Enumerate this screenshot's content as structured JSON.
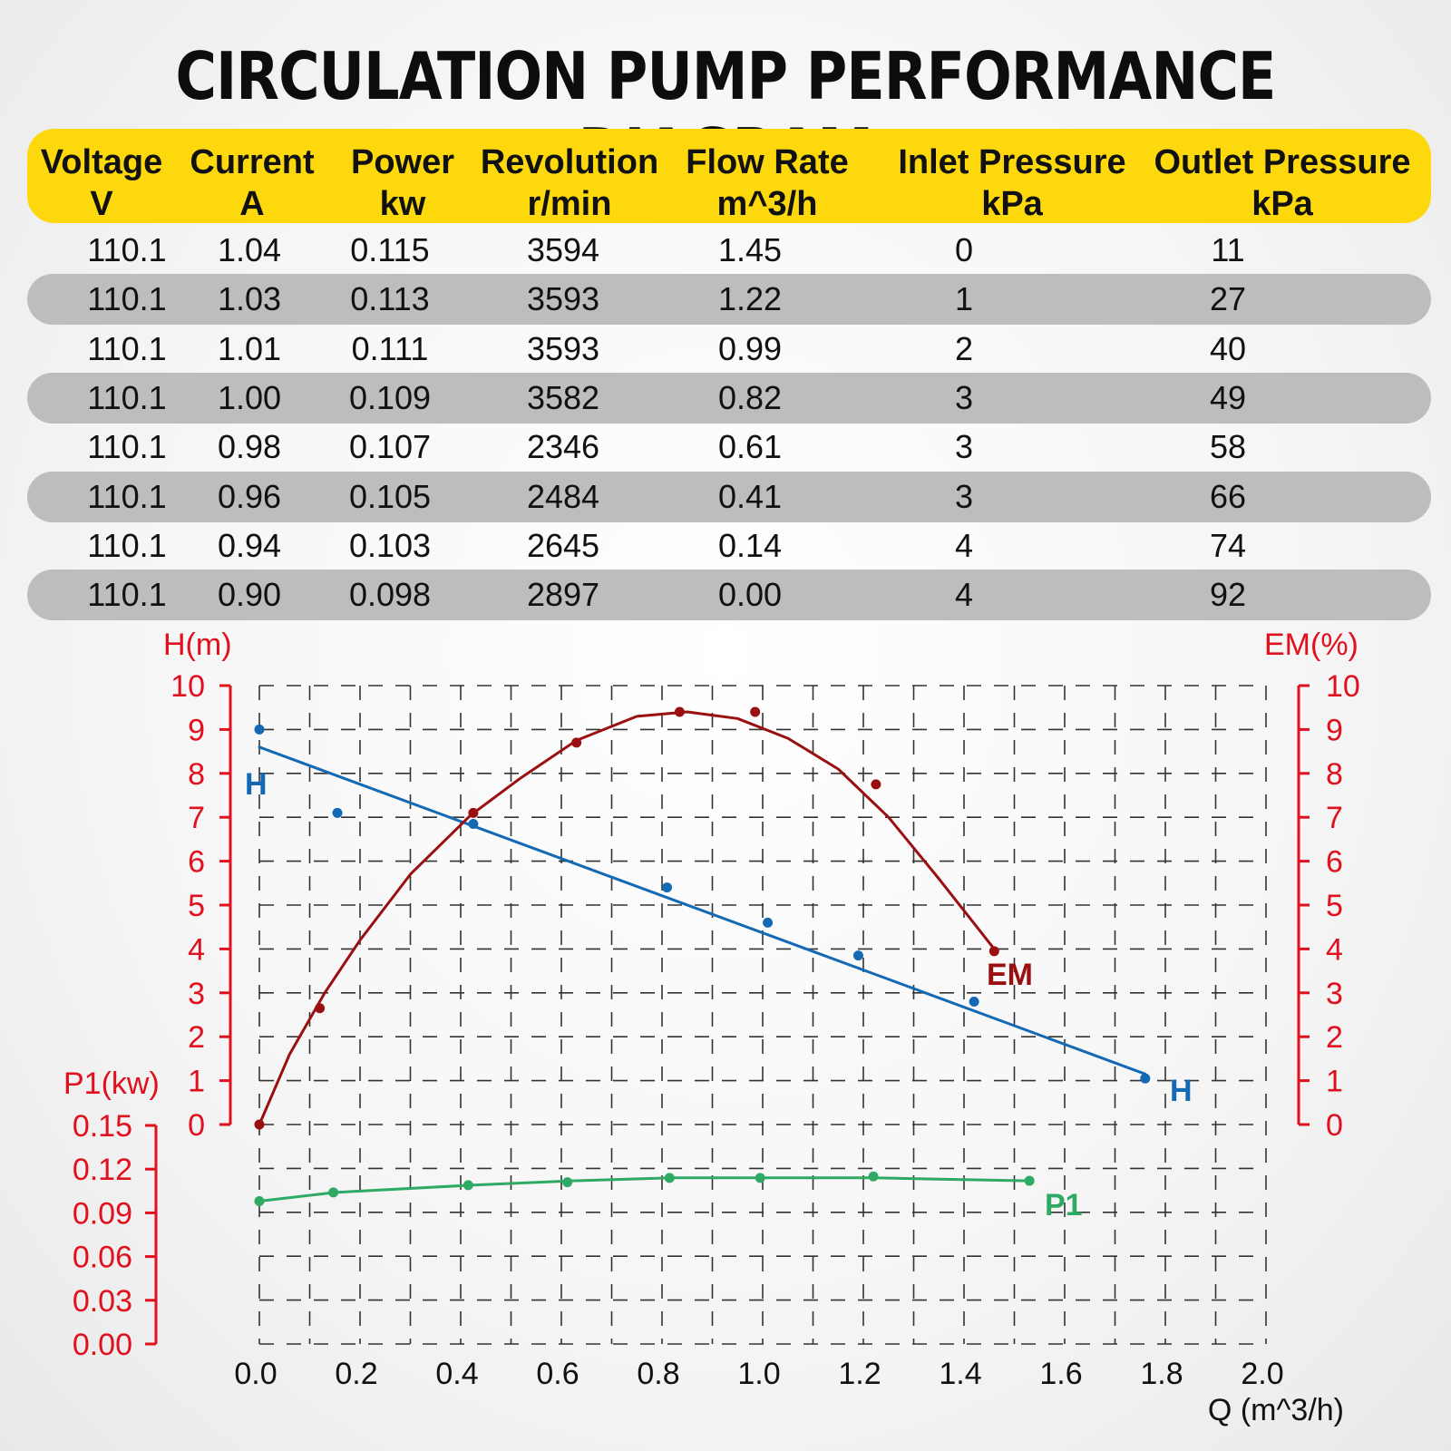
{
  "title": "CIRCULATION PUMP PERFORMANCE DIAGRAM",
  "table": {
    "columns": [
      {
        "name": "Voltage",
        "unit": "V"
      },
      {
        "name": "Current",
        "unit": "A"
      },
      {
        "name": "Power",
        "unit": "kw"
      },
      {
        "name": "Revolution",
        "unit": "r/min"
      },
      {
        "name": "Flow Rate",
        "unit": "m^3/h"
      },
      {
        "name": "Inlet Pressure",
        "unit": "kPa"
      },
      {
        "name": "Outlet Pressure",
        "unit": "kPa"
      }
    ],
    "rows": [
      [
        "110.1",
        "1.04",
        "0.115",
        "3594",
        "1.45",
        "0",
        "11"
      ],
      [
        "110.1",
        "1.03",
        "0.113",
        "3593",
        "1.22",
        "1",
        "27"
      ],
      [
        "110.1",
        "1.01",
        "0.111",
        "3593",
        "0.99",
        "2",
        "40"
      ],
      [
        "110.1",
        "1.00",
        "0.109",
        "3582",
        "0.82",
        "3",
        "49"
      ],
      [
        "110.1",
        "0.98",
        "0.107",
        "2346",
        "0.61",
        "3",
        "58"
      ],
      [
        "110.1",
        "0.96",
        "0.105",
        "2484",
        "0.41",
        "3",
        "66"
      ],
      [
        "110.1",
        "0.94",
        "0.103",
        "2645",
        "0.14",
        "4",
        "74"
      ],
      [
        "110.1",
        "0.90",
        "0.098",
        "2897",
        "0.00",
        "4",
        "92"
      ]
    ],
    "header_color": "#fcd80c",
    "stripe_color": "#bdbdbd"
  },
  "chart_data": {
    "type": "line",
    "grid": "dashed",
    "x_axis": {
      "label": "Q (m^3/h)",
      "range": [
        0,
        2.0
      ],
      "ticks": [
        "0.0",
        "0.2",
        "0.4",
        "0.6",
        "0.8",
        "1.0",
        "1.2",
        "1.4",
        "1.6",
        "1.8",
        "2.0"
      ]
    },
    "y_left_head": {
      "label": "H(m)",
      "range": [
        0,
        10
      ],
      "ticks": [
        "0",
        "1",
        "2",
        "3",
        "4",
        "5",
        "6",
        "7",
        "8",
        "9",
        "10"
      ]
    },
    "y_right_em": {
      "label": "EM(%)",
      "range": [
        0,
        10
      ],
      "ticks": [
        "0",
        "1",
        "2",
        "3",
        "4",
        "5",
        "6",
        "7",
        "8",
        "9",
        "10"
      ]
    },
    "y_left_power": {
      "label": "P1(kw)",
      "range": [
        0,
        0.15
      ],
      "ticks": [
        "0.00",
        "0.03",
        "0.06",
        "0.09",
        "0.12",
        "0.15"
      ]
    },
    "axis_color": "#e0101e",
    "series": [
      {
        "name": "H",
        "axis": "y_left_head",
        "color": "#1469b4",
        "line": [
          [
            0.0,
            8.6
          ],
          [
            1.76,
            1.15
          ]
        ],
        "points": [
          [
            0.0,
            9.0
          ],
          [
            0.155,
            7.1
          ],
          [
            0.425,
            6.85
          ],
          [
            0.81,
            5.4
          ],
          [
            1.01,
            4.6
          ],
          [
            1.19,
            3.85
          ],
          [
            1.42,
            2.8
          ],
          [
            1.76,
            1.05
          ]
        ]
      },
      {
        "name": "EM",
        "axis": "y_right_em",
        "color": "#9a1010",
        "line": [
          [
            0.0,
            0.0
          ],
          [
            0.06,
            1.6
          ],
          [
            0.13,
            3.0
          ],
          [
            0.2,
            4.2
          ],
          [
            0.3,
            5.7
          ],
          [
            0.42,
            7.05
          ],
          [
            0.52,
            7.9
          ],
          [
            0.63,
            8.75
          ],
          [
            0.75,
            9.3
          ],
          [
            0.85,
            9.4
          ],
          [
            0.95,
            9.25
          ],
          [
            1.05,
            8.8
          ],
          [
            1.15,
            8.1
          ],
          [
            1.25,
            7.0
          ],
          [
            1.35,
            5.6
          ],
          [
            1.46,
            4.0
          ]
        ],
        "points": [
          [
            0.0,
            0.0
          ],
          [
            0.12,
            2.65
          ],
          [
            0.425,
            7.1
          ],
          [
            0.63,
            8.7
          ],
          [
            0.835,
            9.4
          ],
          [
            0.985,
            9.4
          ],
          [
            1.225,
            7.75
          ],
          [
            1.46,
            3.95
          ]
        ]
      },
      {
        "name": "P1",
        "axis": "y_left_power",
        "color": "#2eaa64",
        "line": [
          [
            0.0,
            0.098
          ],
          [
            0.15,
            0.104
          ],
          [
            0.42,
            0.109
          ],
          [
            0.62,
            0.112
          ],
          [
            0.82,
            0.114
          ],
          [
            1.0,
            0.114
          ],
          [
            1.22,
            0.114
          ],
          [
            1.53,
            0.112
          ]
        ],
        "points": [
          [
            0.0,
            0.098
          ],
          [
            0.147,
            0.104
          ],
          [
            0.415,
            0.109
          ],
          [
            0.612,
            0.111
          ],
          [
            0.815,
            0.114
          ],
          [
            0.995,
            0.114
          ],
          [
            1.22,
            0.115
          ],
          [
            1.53,
            0.112
          ]
        ]
      }
    ]
  }
}
